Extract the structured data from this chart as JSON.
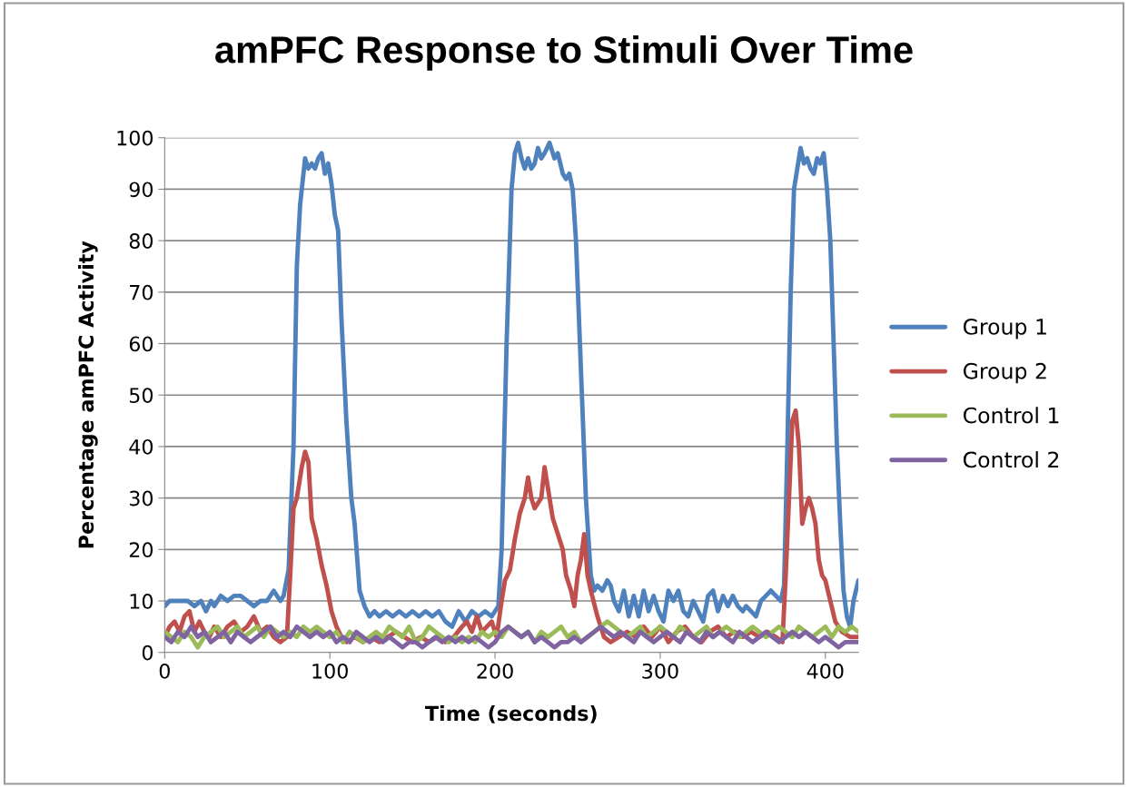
{
  "chart_data": {
    "type": "line",
    "title": "amPFC Response to Stimuli Over Time",
    "xlabel": "Time (seconds)",
    "ylabel": "Percentage amPFC Activity",
    "xlim": [
      0,
      420
    ],
    "xticks": [
      0,
      100,
      200,
      300,
      400
    ],
    "ylim": [
      0,
      100
    ],
    "yticks": [
      0,
      10,
      20,
      30,
      40,
      50,
      60,
      70,
      80,
      90,
      100
    ],
    "grid": "y",
    "legend": "right",
    "marker": "none",
    "line_style": "solid",
    "series": [
      {
        "name": "Group 1",
        "color": "#4f81bd",
        "x": [
          0,
          3,
          6,
          10,
          14,
          18,
          22,
          25,
          28,
          30,
          34,
          38,
          42,
          46,
          50,
          54,
          58,
          62,
          66,
          70,
          72,
          75,
          78,
          80,
          82,
          85,
          87,
          89,
          91,
          93,
          95,
          97,
          99,
          101,
          103,
          105,
          107,
          110,
          113,
          115,
          118,
          121,
          124,
          127,
          130,
          134,
          138,
          142,
          146,
          150,
          154,
          158,
          162,
          166,
          170,
          174,
          178,
          182,
          186,
          190,
          194,
          198,
          202,
          204,
          207,
          210,
          212,
          214,
          216,
          218,
          220,
          222,
          224,
          226,
          228,
          230,
          233,
          236,
          238,
          241,
          243,
          245,
          247,
          249,
          252,
          255,
          258,
          260,
          262,
          265,
          268,
          270,
          272,
          275,
          278,
          281,
          284,
          287,
          290,
          293,
          296,
          299,
          302,
          305,
          308,
          311,
          314,
          317,
          320,
          323,
          326,
          329,
          332,
          335,
          338,
          341,
          344,
          347,
          350,
          352,
          355,
          358,
          361,
          364,
          367,
          370,
          373,
          375,
          377,
          379,
          381,
          383,
          385,
          387,
          389,
          391,
          393,
          395,
          397,
          399,
          401,
          403,
          405,
          407,
          409,
          411,
          413,
          415,
          417,
          420
        ],
        "values": [
          9,
          10,
          10,
          10,
          10,
          9,
          10,
          8,
          10,
          9,
          11,
          10,
          11,
          11,
          10,
          9,
          10,
          10,
          12,
          10,
          11,
          16,
          40,
          75,
          87,
          96,
          94,
          95,
          94,
          96,
          97,
          93,
          95,
          91,
          85,
          82,
          65,
          45,
          30,
          25,
          12,
          9,
          7,
          8,
          7,
          8,
          7,
          8,
          7,
          8,
          7,
          8,
          7,
          8,
          6,
          5,
          8,
          6,
          8,
          7,
          8,
          7,
          9,
          20,
          60,
          90,
          97,
          99,
          96,
          94,
          96,
          94,
          95,
          98,
          96,
          97,
          99,
          96,
          97,
          93,
          92,
          93,
          90,
          80,
          55,
          30,
          15,
          12,
          13,
          12,
          14,
          13,
          10,
          8,
          12,
          7,
          11,
          7,
          12,
          8,
          11,
          8,
          6,
          12,
          10,
          12,
          8,
          7,
          10,
          8,
          6,
          11,
          12,
          8,
          11,
          9,
          11,
          9,
          8,
          9,
          8,
          7,
          10,
          11,
          12,
          11,
          10,
          13,
          40,
          70,
          90,
          94,
          98,
          95,
          96,
          94,
          93,
          96,
          95,
          97,
          90,
          80,
          60,
          40,
          25,
          12,
          7,
          5,
          10,
          14
        ]
      },
      {
        "name": "Group 2",
        "color": "#c0504d",
        "x": [
          0,
          3,
          6,
          9,
          12,
          15,
          18,
          21,
          24,
          27,
          30,
          34,
          38,
          42,
          46,
          50,
          54,
          58,
          62,
          66,
          70,
          74,
          76,
          78,
          80,
          83,
          85,
          87,
          89,
          92,
          95,
          98,
          101,
          104,
          107,
          110,
          115,
          120,
          125,
          130,
          135,
          140,
          145,
          150,
          155,
          160,
          165,
          170,
          175,
          180,
          183,
          186,
          189,
          192,
          195,
          198,
          201,
          204,
          206,
          209,
          212,
          215,
          218,
          220,
          222,
          224,
          226,
          228,
          230,
          232,
          235,
          238,
          241,
          243,
          246,
          248,
          250,
          252,
          254,
          256,
          258,
          262,
          266,
          270,
          275,
          280,
          285,
          290,
          295,
          300,
          305,
          310,
          315,
          320,
          325,
          330,
          335,
          340,
          345,
          350,
          355,
          360,
          365,
          370,
          374,
          376,
          378,
          380,
          382,
          384,
          386,
          388,
          390,
          392,
          394,
          396,
          398,
          400,
          403,
          406,
          410,
          415,
          420
        ],
        "values": [
          3,
          5,
          6,
          4,
          7,
          8,
          4,
          6,
          4,
          3,
          5,
          3,
          5,
          6,
          4,
          5,
          7,
          4,
          5,
          3,
          2,
          3,
          15,
          28,
          30,
          36,
          39,
          37,
          26,
          22,
          17,
          13,
          8,
          5,
          3,
          2,
          3,
          2,
          3,
          2,
          3,
          4,
          3,
          2,
          3,
          2,
          3,
          2,
          3,
          5,
          6,
          4,
          7,
          4,
          5,
          6,
          3,
          10,
          14,
          16,
          22,
          27,
          30,
          34,
          30,
          28,
          29,
          30,
          36,
          32,
          26,
          23,
          20,
          15,
          12,
          9,
          15,
          18,
          23,
          15,
          12,
          7,
          3,
          2,
          3,
          4,
          3,
          5,
          3,
          5,
          2,
          4,
          5,
          3,
          2,
          4,
          5,
          3,
          4,
          3,
          4,
          3,
          4,
          3,
          2,
          15,
          30,
          45,
          47,
          40,
          25,
          28,
          30,
          28,
          25,
          18,
          15,
          14,
          10,
          6,
          4,
          3,
          3
        ]
      },
      {
        "name": "Control 1",
        "color": "#9bbb59",
        "x": [
          0,
          4,
          8,
          12,
          16,
          20,
          24,
          28,
          32,
          36,
          40,
          44,
          48,
          52,
          56,
          60,
          64,
          68,
          72,
          76,
          80,
          84,
          88,
          92,
          96,
          100,
          104,
          108,
          112,
          116,
          120,
          124,
          128,
          132,
          136,
          140,
          144,
          148,
          152,
          156,
          160,
          164,
          168,
          172,
          176,
          180,
          184,
          188,
          192,
          196,
          200,
          204,
          208,
          212,
          216,
          220,
          224,
          228,
          232,
          236,
          240,
          244,
          248,
          252,
          256,
          260,
          264,
          268,
          272,
          276,
          280,
          284,
          288,
          292,
          296,
          300,
          304,
          308,
          312,
          316,
          320,
          324,
          328,
          332,
          336,
          340,
          344,
          348,
          352,
          356,
          360,
          364,
          368,
          372,
          376,
          380,
          384,
          388,
          392,
          396,
          400,
          404,
          408,
          412,
          416,
          420
        ],
        "values": [
          4,
          3,
          2,
          4,
          3,
          1,
          3,
          4,
          5,
          3,
          4,
          5,
          3,
          4,
          5,
          3,
          5,
          4,
          3,
          4,
          3,
          5,
          4,
          5,
          4,
          3,
          4,
          2,
          4,
          3,
          2,
          3,
          4,
          3,
          5,
          4,
          3,
          5,
          2,
          3,
          5,
          4,
          3,
          2,
          3,
          2,
          3,
          2,
          4,
          3,
          4,
          3,
          5,
          4,
          3,
          4,
          2,
          4,
          3,
          4,
          5,
          3,
          4,
          2,
          3,
          4,
          5,
          6,
          5,
          4,
          3,
          4,
          5,
          3,
          4,
          5,
          4,
          3,
          5,
          4,
          3,
          4,
          5,
          3,
          4,
          5,
          4,
          3,
          4,
          5,
          4,
          3,
          4,
          5,
          4,
          3,
          5,
          4,
          3,
          4,
          5,
          3,
          5,
          4,
          5,
          4
        ]
      },
      {
        "name": "Control 2",
        "color": "#8064a2",
        "x": [
          0,
          4,
          8,
          12,
          16,
          20,
          24,
          28,
          32,
          36,
          40,
          44,
          48,
          52,
          56,
          60,
          64,
          68,
          72,
          76,
          80,
          84,
          88,
          92,
          96,
          100,
          104,
          108,
          112,
          116,
          120,
          124,
          128,
          132,
          136,
          140,
          144,
          148,
          152,
          156,
          160,
          164,
          168,
          172,
          176,
          180,
          184,
          188,
          192,
          196,
          200,
          204,
          208,
          212,
          216,
          220,
          224,
          228,
          232,
          236,
          240,
          244,
          248,
          252,
          256,
          260,
          264,
          268,
          272,
          276,
          280,
          284,
          288,
          292,
          296,
          300,
          304,
          308,
          312,
          316,
          320,
          324,
          328,
          332,
          336,
          340,
          344,
          348,
          352,
          356,
          360,
          364,
          368,
          372,
          376,
          380,
          384,
          388,
          392,
          396,
          400,
          404,
          408,
          412,
          416,
          420
        ],
        "values": [
          3,
          2,
          4,
          3,
          5,
          3,
          4,
          2,
          3,
          4,
          2,
          4,
          3,
          2,
          3,
          4,
          5,
          3,
          4,
          3,
          5,
          4,
          3,
          4,
          3,
          4,
          2,
          3,
          2,
          4,
          3,
          2,
          3,
          2,
          3,
          2,
          1,
          2,
          2,
          1,
          2,
          3,
          2,
          3,
          2,
          3,
          2,
          3,
          2,
          1,
          2,
          4,
          5,
          4,
          3,
          4,
          2,
          3,
          2,
          1,
          2,
          2,
          3,
          2,
          3,
          4,
          5,
          4,
          3,
          4,
          3,
          2,
          4,
          3,
          2,
          3,
          4,
          3,
          2,
          4,
          3,
          2,
          4,
          3,
          4,
          3,
          2,
          4,
          3,
          2,
          3,
          4,
          3,
          2,
          3,
          4,
          3,
          4,
          3,
          2,
          3,
          2,
          1,
          2,
          2,
          2
        ]
      }
    ]
  }
}
